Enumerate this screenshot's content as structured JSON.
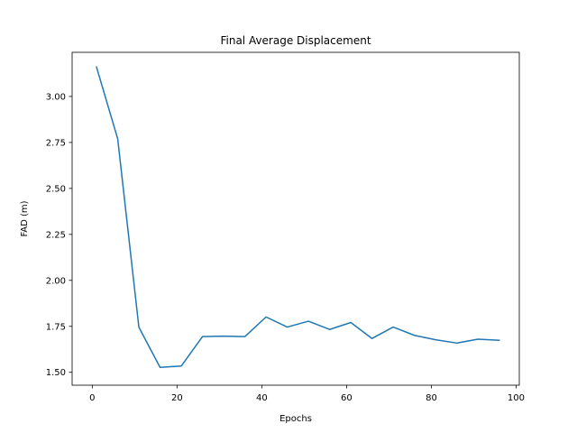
{
  "chart_data": {
    "type": "line",
    "title": "Final Average Displacement",
    "xlabel": "Epochs",
    "ylabel": "FAD (m)",
    "xlim": [
      -4.75,
      100.75
    ],
    "ylim": [
      1.43,
      3.24
    ],
    "xticks": [
      0,
      20,
      40,
      60,
      80,
      100
    ],
    "xtick_labels": [
      "0",
      "20",
      "40",
      "60",
      "80",
      "100"
    ],
    "yticks": [
      1.5,
      1.75,
      2.0,
      2.25,
      2.5,
      2.75,
      3.0
    ],
    "ytick_labels": [
      "1.50",
      "1.75",
      "2.00",
      "2.25",
      "2.50",
      "2.75",
      "3.00"
    ],
    "grid": false,
    "series": [
      {
        "color": "#1f77b4",
        "x": [
          1,
          6,
          11,
          16,
          21,
          26,
          31,
          36,
          41,
          46,
          51,
          56,
          61,
          66,
          71,
          76,
          81,
          86,
          91,
          96
        ],
        "y": [
          3.16,
          2.77,
          1.745,
          1.527,
          1.534,
          1.694,
          1.697,
          1.694,
          1.801,
          1.746,
          1.778,
          1.733,
          1.771,
          1.684,
          1.746,
          1.701,
          1.677,
          1.659,
          1.68,
          1.674
        ]
      }
    ]
  }
}
